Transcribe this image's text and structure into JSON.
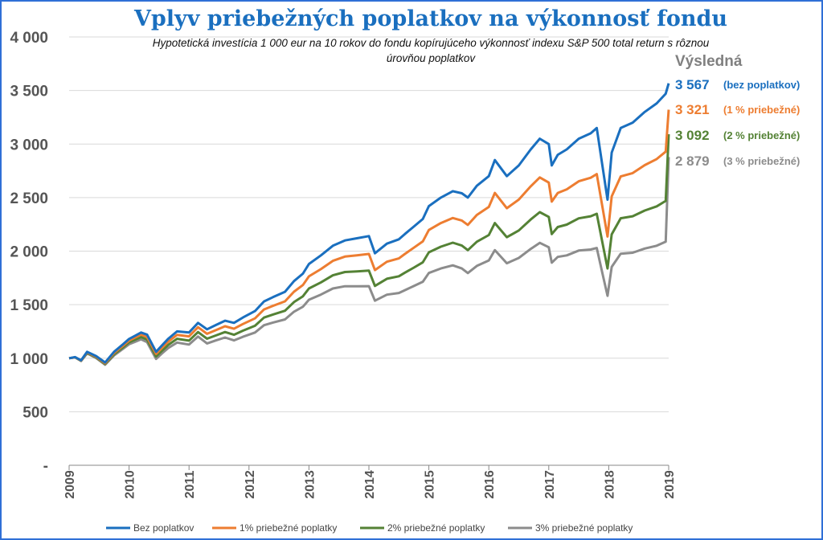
{
  "chart_data": {
    "type": "line",
    "title": "Vplyv priebežných poplatkov na výkonnosť fondu",
    "subtitle_line1": "Hypotetická investícia 1 000 eur na 10 rokov do fondu kopírujúceho výkonnosť indexu S&P 500 total return s rôznou",
    "subtitle_line2": "úrovňou poplatkov",
    "end_header": "Výsledná",
    "ylim": [
      0,
      4000
    ],
    "y_ticks": [
      "-",
      "500",
      "1 000",
      "1 500",
      "2 000",
      "2 500",
      "3 000",
      "3 500",
      "4 000"
    ],
    "x_ticks": [
      "2009",
      "2010",
      "2011",
      "2012",
      "2013",
      "2014",
      "2015",
      "2016",
      "2017",
      "2018",
      "2019"
    ],
    "grid": true,
    "legend_position": "bottom",
    "x": [
      2009.0,
      2009.1,
      2009.2,
      2009.3,
      2009.45,
      2009.6,
      2009.75,
      2009.9,
      2010.0,
      2010.1,
      2010.2,
      2010.3,
      2010.45,
      2010.55,
      2010.65,
      2010.8,
      2011.0,
      2011.15,
      2011.3,
      2011.45,
      2011.6,
      2011.75,
      2011.9,
      2012.1,
      2012.25,
      2012.4,
      2012.6,
      2012.75,
      2012.9,
      2013.0,
      2013.2,
      2013.4,
      2013.6,
      2013.8,
      2014.0,
      2014.1,
      2014.3,
      2014.5,
      2014.6,
      2014.75,
      2014.9,
      2015.0,
      2015.2,
      2015.4,
      2015.55,
      2015.65,
      2015.8,
      2016.0,
      2016.1,
      2016.3,
      2016.5,
      2016.7,
      2016.85,
      2017.0,
      2017.05,
      2017.15,
      2017.3,
      2017.5,
      2017.7,
      2017.8,
      2017.9,
      2017.98,
      2018.05,
      2018.2,
      2018.4,
      2018.6,
      2018.8,
      2018.95,
      2019.0
    ],
    "series": [
      {
        "name": "Bez poplatkov",
        "color": "#1a6fbf",
        "end_value": "3 567",
        "end_note": "(bez poplatkov)",
        "values": [
          1000,
          1010,
          980,
          1060,
          1020,
          960,
          1060,
          1130,
          1180,
          1210,
          1240,
          1220,
          1060,
          1120,
          1180,
          1250,
          1240,
          1330,
          1270,
          1310,
          1350,
          1330,
          1380,
          1440,
          1530,
          1570,
          1620,
          1720,
          1790,
          1880,
          1960,
          2050,
          2100,
          2120,
          2140,
          1980,
          2070,
          2110,
          2160,
          2230,
          2300,
          2420,
          2500,
          2560,
          2540,
          2500,
          2610,
          2700,
          2850,
          2700,
          2800,
          2950,
          3050,
          3000,
          2800,
          2900,
          2950,
          3050,
          3100,
          3150,
          2780,
          2480,
          2920,
          3150,
          3200,
          3300,
          3380,
          3470,
          3567
        ]
      },
      {
        "name": "1% priebežné poplatky",
        "color": "#ed7d31",
        "end_value": "3 321",
        "end_note": "(1 % priebežné)",
        "values": [
          1000,
          1009,
          978,
          1055,
          1014,
          953,
          1049,
          1117,
          1165,
          1193,
          1220,
          1198,
          1040,
          1097,
          1153,
          1218,
          1204,
          1289,
          1228,
          1263,
          1298,
          1275,
          1319,
          1372,
          1455,
          1489,
          1531,
          1621,
          1683,
          1764,
          1832,
          1909,
          1949,
          1961,
          1974,
          1823,
          1901,
          1932,
          1974,
          2032,
          2091,
          2197,
          2262,
          2309,
          2286,
          2245,
          2338,
          2413,
          2543,
          2401,
          2481,
          2606,
          2688,
          2640,
          2462,
          2543,
          2577,
          2652,
          2685,
          2720,
          2398,
          2136,
          2511,
          2697,
          2729,
          2803,
          2860,
          2929,
          3321
        ]
      },
      {
        "name": "2% priebežné poplatky",
        "color": "#548235",
        "end_value": "3 092",
        "end_note": "(2 % priebežné)",
        "values": [
          1000,
          1008,
          976,
          1050,
          1008,
          946,
          1037,
          1102,
          1148,
          1173,
          1198,
          1174,
          1016,
          1070,
          1123,
          1181,
          1164,
          1244,
          1182,
          1213,
          1244,
          1219,
          1257,
          1303,
          1379,
          1408,
          1443,
          1524,
          1578,
          1651,
          1708,
          1774,
          1805,
          1810,
          1818,
          1675,
          1742,
          1765,
          1799,
          1846,
          1896,
          1989,
          2041,
          2079,
          2052,
          2009,
          2088,
          2150,
          2262,
          2130,
          2193,
          2296,
          2364,
          2320,
          2159,
          2225,
          2248,
          2306,
          2326,
          2349,
          2066,
          1838,
          2157,
          2307,
          2326,
          2379,
          2418,
          2469,
          3092
        ]
      },
      {
        "name": "3% priebežné poplatky",
        "color": "#8c8c8c",
        "end_value": "2 879",
        "end_note": "(3 % priebežné)",
        "values": [
          1000,
          1007,
          974,
          1045,
          1002,
          939,
          1026,
          1088,
          1130,
          1153,
          1176,
          1150,
          993,
          1045,
          1094,
          1146,
          1127,
          1202,
          1138,
          1166,
          1193,
          1166,
          1200,
          1240,
          1308,
          1333,
          1362,
          1434,
          1481,
          1546,
          1594,
          1651,
          1672,
          1671,
          1673,
          1537,
          1593,
          1609,
          1635,
          1674,
          1714,
          1796,
          1838,
          1867,
          1838,
          1795,
          1862,
          1913,
          2009,
          1887,
          1936,
          2021,
          2077,
          2036,
          1892,
          1946,
          1960,
          2005,
          2015,
          2029,
          1781,
          1583,
          1853,
          1976,
          1985,
          2024,
          2050,
          2088,
          2879
        ]
      }
    ]
  }
}
